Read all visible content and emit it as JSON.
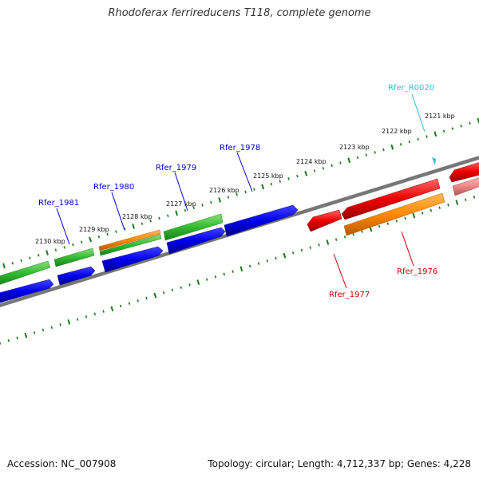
{
  "title": "Rhodoferax ferrireducens T118, complete genome",
  "footer": {
    "accession": "Accession: NC_007908",
    "topology": "Topology: circular; Length: 4,712,337 bp; Genes: 4,228"
  },
  "ruler_ticks": [
    {
      "label": "2121 kbp"
    },
    {
      "label": "2122 kbp"
    },
    {
      "label": "2123 kbp"
    },
    {
      "label": "2124 kbp"
    },
    {
      "label": "2125 kbp"
    },
    {
      "label": "2126 kbp"
    },
    {
      "label": "2127 kbp"
    },
    {
      "label": "2128 kbp"
    },
    {
      "label": "2129 kbp"
    },
    {
      "label": "2130 kbp"
    }
  ],
  "gene_labels": [
    {
      "name": "Rfer_R0020",
      "color": "#33bbdd"
    },
    {
      "name": "Rfer_1978",
      "color": "#0000cc"
    },
    {
      "name": "Rfer_1979",
      "color": "#0000cc"
    },
    {
      "name": "Rfer_1980",
      "color": "#0000cc"
    },
    {
      "name": "Rfer_1981",
      "color": "#0000cc"
    },
    {
      "name": "Rfer_1976",
      "color": "#cc0000"
    },
    {
      "name": "Rfer_1977",
      "color": "#cc0000"
    }
  ],
  "colors": {
    "forward_cds": "#0000ee",
    "forward_go": "#33bb33",
    "orange_go": "#ff8800",
    "reverse_cds": "#ee0000",
    "rna": "#33bbdd",
    "backbone": "#777777",
    "tick": "#1a7a1a"
  }
}
